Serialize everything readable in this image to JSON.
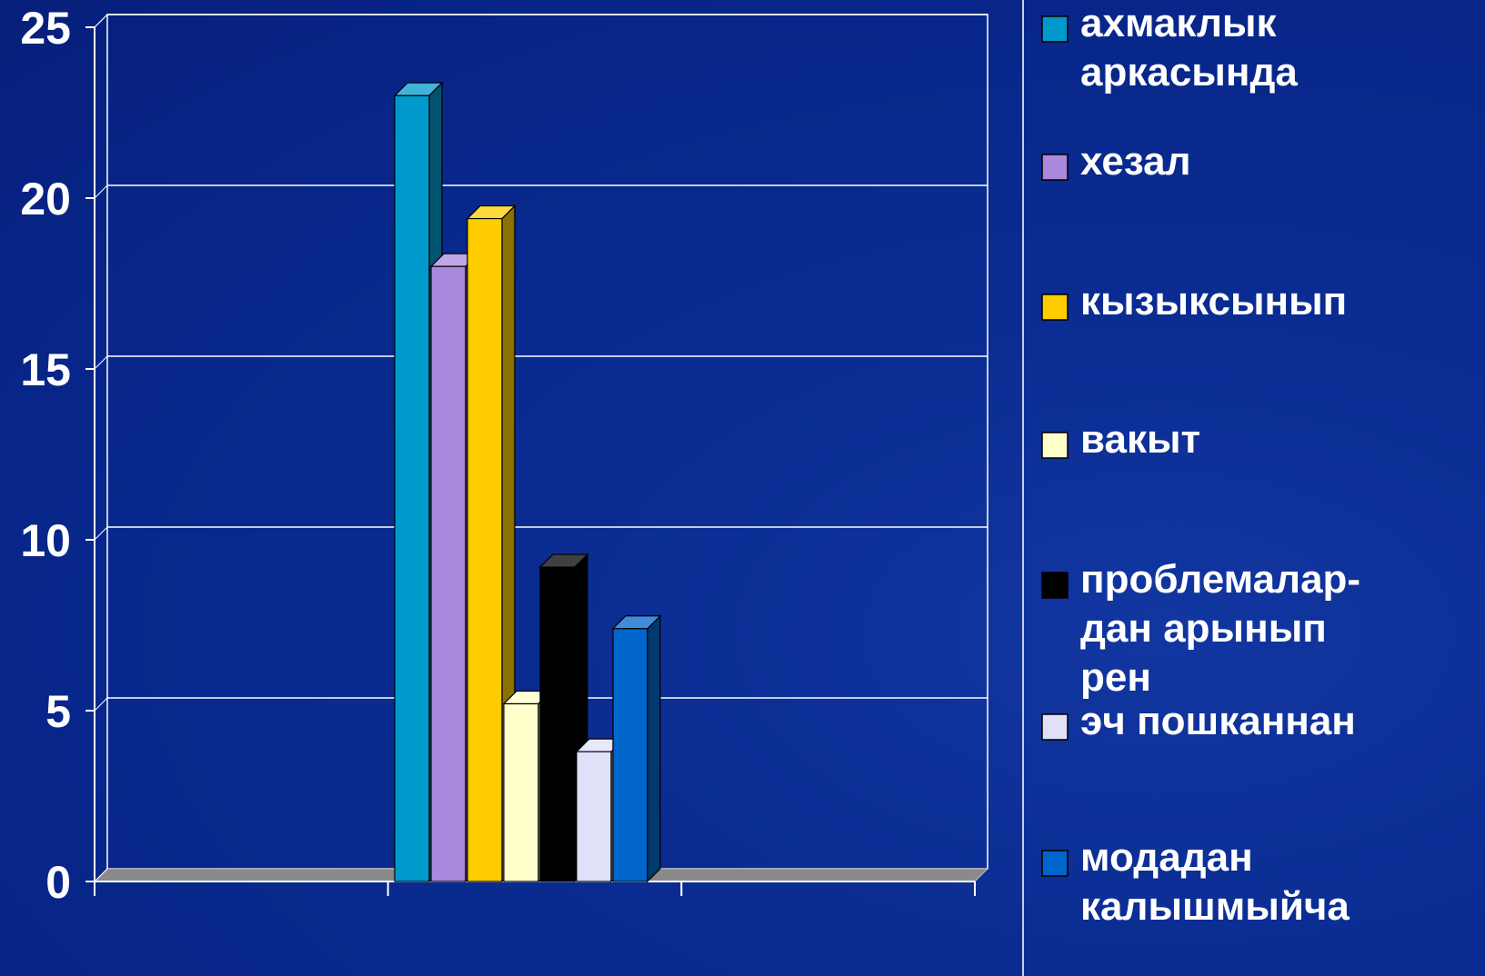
{
  "chart_data": {
    "type": "bar",
    "title": "",
    "xlabel": "",
    "ylabel": "",
    "ylim": [
      0,
      25
    ],
    "yticks": [
      0,
      5,
      10,
      15,
      20,
      25
    ],
    "grid": true,
    "legend_position": "right",
    "categories": [
      ""
    ],
    "series": [
      {
        "name": "ахмаклык аркасында",
        "color": "#0099cc",
        "values": [
          23
        ]
      },
      {
        "name": "хезал",
        "color": "#aa88dd",
        "values": [
          18
        ]
      },
      {
        "name": "кызыксынып",
        "color": "#ffcc00",
        "values": [
          19.4
        ]
      },
      {
        "name": "вакыт",
        "color": "#ffffcc",
        "values": [
          5.2
        ]
      },
      {
        "name": "проблемалар-дан арынырен",
        "color": "#000000",
        "values": [
          9.2
        ]
      },
      {
        "name": "эч пошканнан",
        "color": "#e0e0f8",
        "values": [
          3.8
        ]
      },
      {
        "name": "модадан калышмыйча",
        "color": "#0066cc",
        "values": [
          7.4
        ]
      }
    ],
    "legend_lines": [
      [
        "ахмаклык",
        "аркасында"
      ],
      [
        "хезал"
      ],
      [
        "кызыксынып"
      ],
      [
        "вакыт"
      ],
      [
        "проблемалар-",
        "дан арынып",
        "рен"
      ],
      [
        "эч пошканнан"
      ],
      [
        "модадан",
        "калышмыйча"
      ]
    ]
  }
}
